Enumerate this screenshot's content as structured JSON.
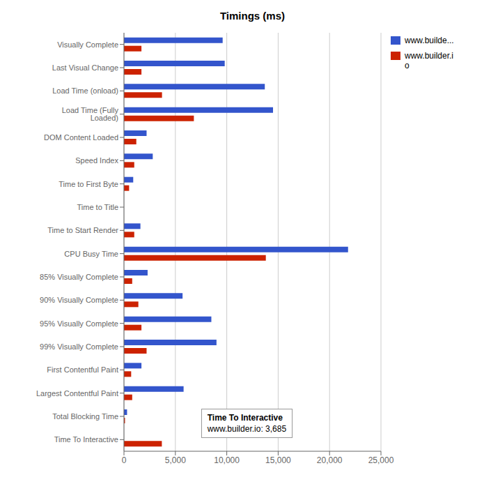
{
  "chart_data": {
    "type": "bar",
    "title": "Timings (ms)",
    "orientation": "horizontal",
    "categories": [
      "Visually Complete",
      "Last Visual Change",
      "Load Time (onload)",
      "Load Time (Fully Loaded)",
      "DOM Content Loaded",
      "Speed Index",
      "Time to First Byte",
      "Time to Title",
      "Time to Start Render",
      "CPU Busy Time",
      "85% Visually Complete",
      "90% Visually Complete",
      "95% Visually Complete",
      "99% Visually Complete",
      "First Contentful Paint",
      "Largest Contentful Paint",
      "Total Blocking Time",
      "Time To Interactive"
    ],
    "series": [
      {
        "name": "www.builde...",
        "color": "#3355cc",
        "values": [
          9600,
          9800,
          13700,
          14500,
          2200,
          2800,
          900,
          0,
          1600,
          21800,
          2300,
          5700,
          8500,
          9000,
          1700,
          5800,
          300,
          0
        ]
      },
      {
        "name": "www.builder.i\no",
        "color": "#cc2200",
        "values": [
          1700,
          1700,
          3700,
          6800,
          1200,
          1000,
          500,
          0,
          1000,
          13800,
          800,
          1400,
          1700,
          2200,
          700,
          800,
          100,
          3685
        ]
      }
    ],
    "xlim": [
      0,
      25000
    ],
    "xticks": [
      0,
      {
        "value": 5000,
        "label": "5,000"
      },
      {
        "value": 10000,
        "label": "10,000"
      },
      {
        "value": 15000,
        "label": "15,000"
      },
      {
        "value": 20000,
        "label": "20,000"
      },
      {
        "value": 25000,
        "label": "25,000"
      }
    ],
    "grid": true,
    "legend": "right",
    "annotations": [
      "Time To Interactive",
      "www.builder.io: 3,685"
    ]
  }
}
